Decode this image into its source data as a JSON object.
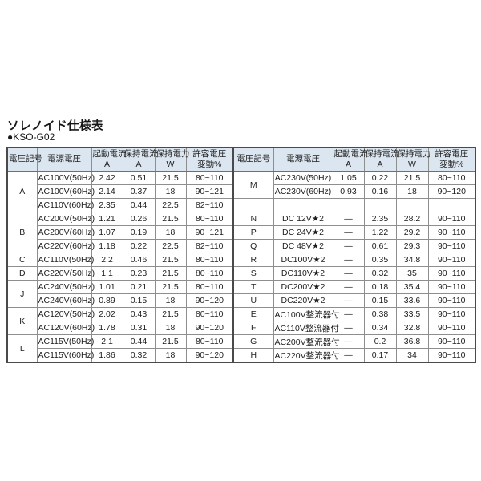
{
  "page": {
    "title": "ソレノイド仕様表",
    "model": "●KSO-G02"
  },
  "table": {
    "columns": [
      {
        "id": "symbol",
        "lines": [
          "電圧記号"
        ]
      },
      {
        "id": "voltage",
        "lines": [
          "電源電圧"
        ]
      },
      {
        "id": "inrush-current",
        "lines": [
          "起動電流",
          "A"
        ]
      },
      {
        "id": "holding-current",
        "lines": [
          "保持電流",
          "A"
        ]
      },
      {
        "id": "holding-power",
        "lines": [
          "保持電力",
          "W"
        ]
      },
      {
        "id": "voltage-tolerance",
        "lines": [
          "許容電圧",
          "変動%"
        ]
      }
    ],
    "left_groups": [
      {
        "symbol": "A",
        "rows": [
          [
            "AC100V(50Hz)",
            "2.42",
            "0.51",
            "21.5",
            "80~110"
          ],
          [
            "AC100V(60Hz)",
            "2.14",
            "0.37",
            "18",
            "90~121"
          ],
          [
            "AC110V(60Hz)",
            "2.35",
            "0.44",
            "22.5",
            "82~110"
          ]
        ]
      },
      {
        "symbol": "B",
        "rows": [
          [
            "AC200V(50Hz)",
            "1.21",
            "0.26",
            "21.5",
            "80~110"
          ],
          [
            "AC200V(60Hz)",
            "1.07",
            "0.19",
            "18",
            "90~121"
          ],
          [
            "AC220V(60Hz)",
            "1.18",
            "0.22",
            "22.5",
            "82~110"
          ]
        ]
      },
      {
        "symbol": "C",
        "rows": [
          [
            "AC110V(50Hz)",
            "2.2",
            "0.46",
            "21.5",
            "80~110"
          ]
        ]
      },
      {
        "symbol": "D",
        "rows": [
          [
            "AC220V(50Hz)",
            "1.1",
            "0.23",
            "21.5",
            "80~110"
          ]
        ]
      },
      {
        "symbol": "J",
        "rows": [
          [
            "AC240V(50Hz)",
            "1.01",
            "0.21",
            "21.5",
            "80~110"
          ],
          [
            "AC240V(60Hz)",
            "0.89",
            "0.15",
            "18",
            "90~120"
          ]
        ]
      },
      {
        "symbol": "K",
        "rows": [
          [
            "AC120V(50Hz)",
            "2.02",
            "0.43",
            "21.5",
            "80~110"
          ],
          [
            "AC120V(60Hz)",
            "1.78",
            "0.31",
            "18",
            "90~120"
          ]
        ]
      },
      {
        "symbol": "L",
        "rows": [
          [
            "AC115V(50Hz)",
            "2.1",
            "0.44",
            "21.5",
            "80~110"
          ],
          [
            "AC115V(60Hz)",
            "1.86",
            "0.32",
            "18",
            "90~120"
          ]
        ]
      }
    ],
    "right_groups": [
      {
        "symbol": "M",
        "rows": [
          [
            "AC230V(50Hz)",
            "1.05",
            "0.22",
            "21.5",
            "80~110"
          ],
          [
            "AC230V(60Hz)",
            "0.93",
            "0.16",
            "18",
            "90~120"
          ]
        ]
      },
      {
        "symbol": "",
        "rows": [
          [
            "",
            "",
            "",
            "",
            ""
          ]
        ]
      },
      {
        "symbol": "N",
        "rows": [
          [
            "DC 12V★2",
            "—",
            "2.35",
            "28.2",
            "90~110"
          ]
        ]
      },
      {
        "symbol": "P",
        "rows": [
          [
            "DC 24V★2",
            "—",
            "1.22",
            "29.2",
            "90~110"
          ]
        ]
      },
      {
        "symbol": "Q",
        "rows": [
          [
            "DC 48V★2",
            "—",
            "0.61",
            "29.3",
            "90~110"
          ]
        ]
      },
      {
        "symbol": "R",
        "rows": [
          [
            "DC100V★2",
            "—",
            "0.35",
            "34.8",
            "90~110"
          ]
        ]
      },
      {
        "symbol": "S",
        "rows": [
          [
            "DC110V★2",
            "—",
            "0.32",
            "35",
            "90~110"
          ]
        ]
      },
      {
        "symbol": "T",
        "rows": [
          [
            "DC200V★2",
            "—",
            "0.18",
            "35.4",
            "90~110"
          ]
        ]
      },
      {
        "symbol": "U",
        "rows": [
          [
            "DC220V★2",
            "—",
            "0.15",
            "33.6",
            "90~110"
          ]
        ]
      },
      {
        "symbol": "E",
        "rows": [
          [
            "AC100V整流器付",
            "—",
            "0.38",
            "33.5",
            "90~110"
          ]
        ]
      },
      {
        "symbol": "F",
        "rows": [
          [
            "AC110V整流器付",
            "—",
            "0.34",
            "32.8",
            "90~110"
          ]
        ]
      },
      {
        "symbol": "G",
        "rows": [
          [
            "AC200V整流器付",
            "—",
            "0.2",
            "36.8",
            "90~110"
          ]
        ]
      },
      {
        "symbol": "H",
        "rows": [
          [
            "AC220V整流器付",
            "—",
            "0.17",
            "34",
            "90~110"
          ]
        ]
      }
    ]
  }
}
